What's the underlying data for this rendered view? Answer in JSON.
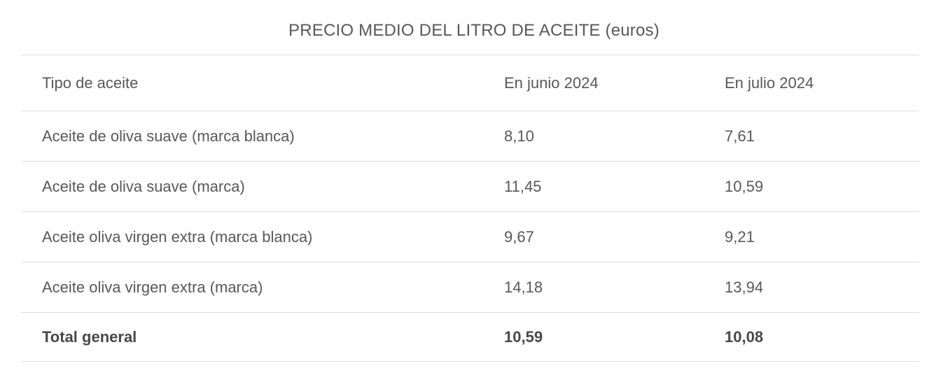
{
  "page": {
    "title": "PRECIO MEDIO DEL LITRO DE ACEITE (euros)"
  },
  "table": {
    "columns": [
      "Tipo de aceite",
      "En junio 2024",
      "En julio 2024"
    ],
    "rows": [
      {
        "cells": [
          "Aceite de oliva suave (marca blanca)",
          "8,10",
          "7,61"
        ]
      },
      {
        "cells": [
          "Aceite de oliva suave (marca)",
          "11,45",
          "10,59"
        ]
      },
      {
        "cells": [
          "Aceite oliva virgen extra (marca blanca)",
          "9,67",
          "9,21"
        ]
      },
      {
        "cells": [
          "Aceite oliva virgen extra (marca)",
          "14,18",
          "13,94"
        ]
      },
      {
        "cells": [
          "Total general",
          "10,59",
          "10,08"
        ],
        "bold": true
      }
    ]
  },
  "colors": {
    "text": "#58585a",
    "total_text": "#48484a",
    "border": "#dcdcdc",
    "background": "#ffffff"
  },
  "chart_data": {
    "type": "table",
    "title": "PRECIO MEDIO DEL LITRO DE ACEITE (euros)",
    "columns": [
      "Tipo de aceite",
      "En junio 2024",
      "En julio 2024"
    ],
    "rows": [
      [
        "Aceite de oliva suave (marca blanca)",
        8.1,
        7.61
      ],
      [
        "Aceite de oliva suave (marca)",
        11.45,
        10.59
      ],
      [
        "Aceite oliva virgen extra (marca blanca)",
        9.67,
        9.21
      ],
      [
        "Aceite oliva virgen extra (marca)",
        14.18,
        13.94
      ],
      [
        "Total general",
        10.59,
        10.08
      ]
    ],
    "notes": "Decimal comma formatting (Spanish locale); last row is bold grand total"
  }
}
